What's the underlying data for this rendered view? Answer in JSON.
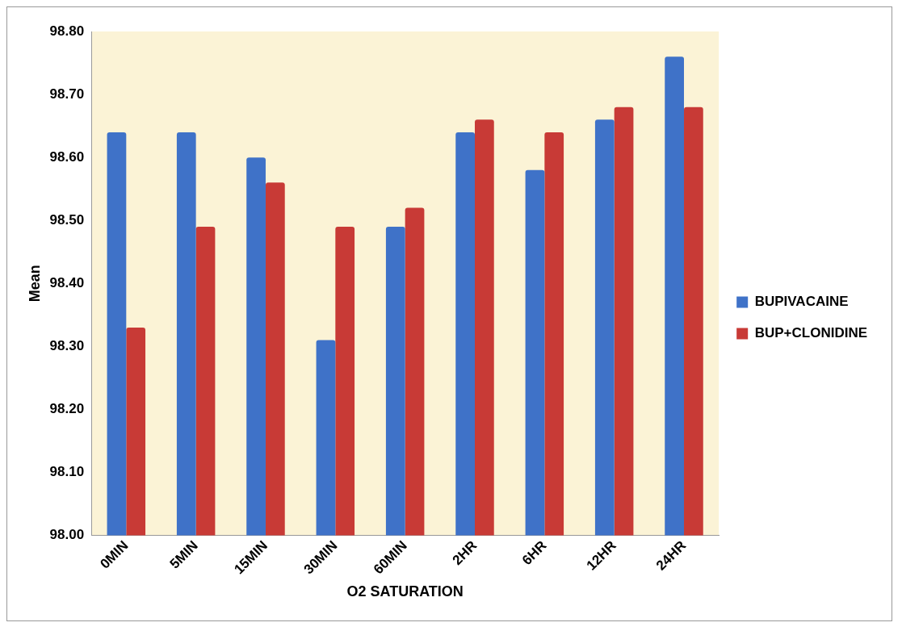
{
  "chart_data": {
    "type": "bar",
    "xlabel": "O2 SATURATION",
    "ylabel": "Mean",
    "categories": [
      "0MIN",
      "5MIN",
      "15MIN",
      "30MIN",
      "60MIN",
      "2HR",
      "6HR",
      "12HR",
      "24HR"
    ],
    "series": [
      {
        "name": "BUPIVACAINE",
        "color": "#3f72c8",
        "values": [
          98.64,
          98.64,
          98.6,
          98.31,
          98.49,
          98.64,
          98.58,
          98.66,
          98.76
        ]
      },
      {
        "name": "BUP+CLONIDINE",
        "color": "#c83a36",
        "values": [
          98.33,
          98.49,
          98.56,
          98.49,
          98.52,
          98.66,
          98.64,
          98.68,
          98.68
        ]
      }
    ],
    "ylim": [
      98.0,
      98.8
    ],
    "yticks": [
      {
        "value": 98.0,
        "label": "98.00"
      },
      {
        "value": 98.1,
        "label": "98.10"
      },
      {
        "value": 98.2,
        "label": "98.20"
      },
      {
        "value": 98.3,
        "label": "98.30"
      },
      {
        "value": 98.4,
        "label": "98.40"
      },
      {
        "value": 98.5,
        "label": "98.50"
      },
      {
        "value": 98.6,
        "label": "98.60"
      },
      {
        "value": 98.7,
        "label": "98.70"
      },
      {
        "value": 98.8,
        "label": "98.80"
      }
    ],
    "grid": false,
    "legend": "right"
  }
}
